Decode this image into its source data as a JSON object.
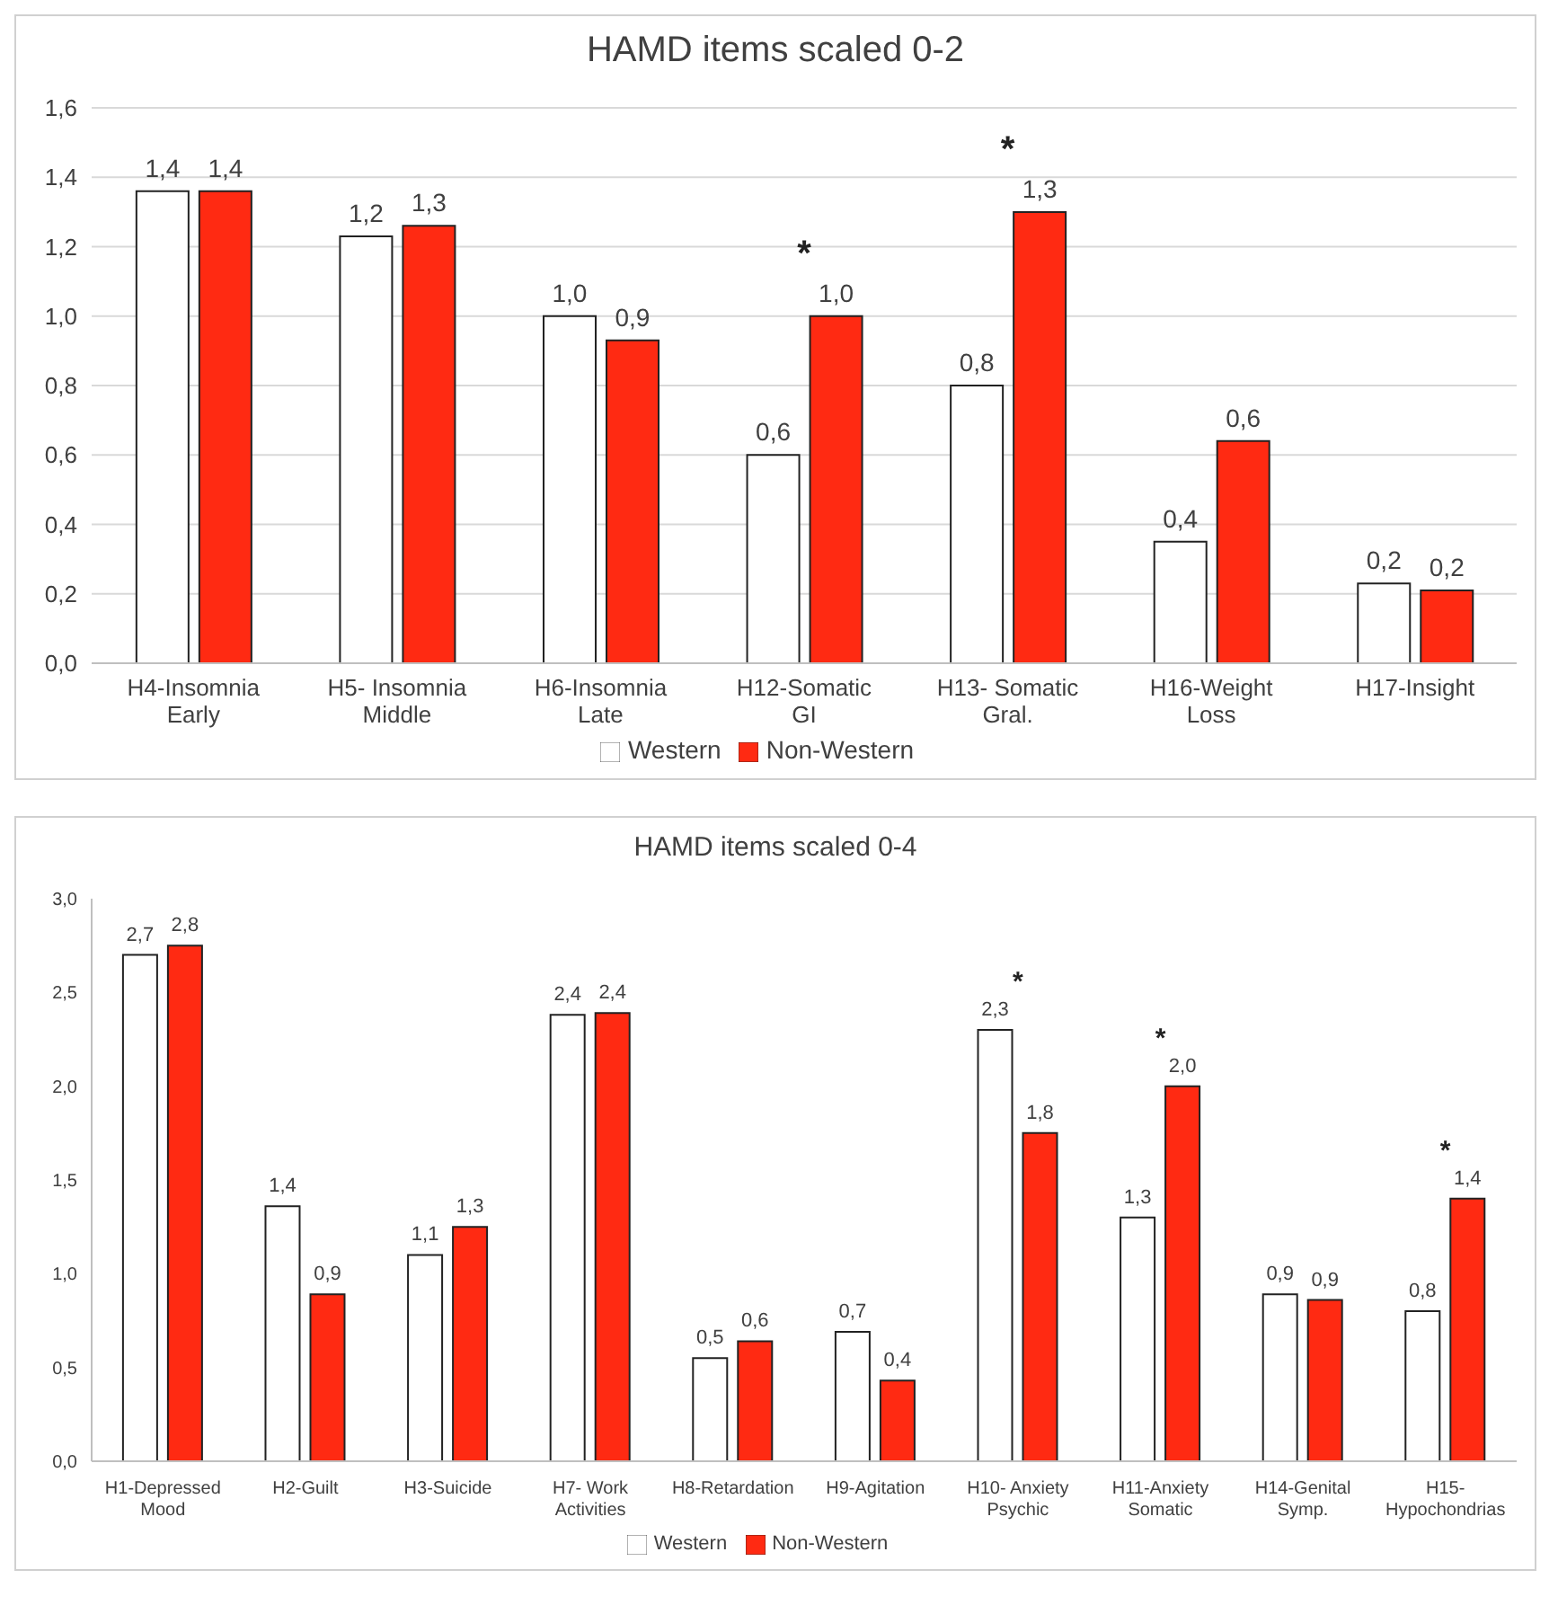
{
  "chart_data": [
    {
      "type": "bar",
      "title": "HAMD items scaled 0-2",
      "categories": [
        "H4-Insomnia Early",
        "H5- Insomnia Middle",
        "H6-Insomnia Late",
        "H12-Somatic GI",
        "H13- Somatic Gral.",
        "H16-Weight Loss",
        "H17-Insight"
      ],
      "series": [
        {
          "name": "Western",
          "color": "#ffffff",
          "values": [
            1.36,
            1.23,
            1.0,
            0.6,
            0.8,
            0.35,
            0.23
          ],
          "value_labels": [
            "1,4",
            "1,2",
            "1,0",
            "0,6",
            "0,8",
            "0,4",
            "0,2"
          ]
        },
        {
          "name": "Non-Western",
          "color": "#ff2a12",
          "values": [
            1.36,
            1.26,
            0.93,
            1.0,
            1.3,
            0.64,
            0.21
          ],
          "value_labels": [
            "1,4",
            "1,3",
            "0,9",
            "1,0",
            "1,3",
            "0,6",
            "0,2"
          ]
        }
      ],
      "ylim": [
        0,
        1.6
      ],
      "yticks": [
        {
          "value": 0,
          "label": "0,0"
        },
        {
          "value": 0.2,
          "label": "0,2"
        },
        {
          "value": 0.4,
          "label": "0,4"
        },
        {
          "value": 0.6,
          "label": "0,6"
        },
        {
          "value": 0.8,
          "label": "0,8"
        },
        {
          "value": 1,
          "label": "1,0"
        },
        {
          "value": 1.2,
          "label": "1,2"
        },
        {
          "value": 1.4,
          "label": "1,4"
        },
        {
          "value": 1.6,
          "label": "1,6"
        }
      ],
      "grid": "y",
      "legend": "bottom",
      "annotations": [
        "*",
        "*"
      ]
    },
    {
      "type": "bar",
      "title": "HAMD items scaled 0-4",
      "categories": [
        "H1-Depressed Mood",
        "H2-Guilt",
        "H3-Suicide",
        "H7- Work Activities",
        "H8-Retardation",
        "H9-Agitation",
        "H10- Anxiety Psychic",
        "H11-Anxiety Somatic",
        "H14-Genital Symp.",
        "H15- Hypochondrias"
      ],
      "series": [
        {
          "name": "Western",
          "color": "#ffffff",
          "values": [
            2.7,
            1.36,
            1.1,
            2.38,
            0.55,
            0.69,
            2.3,
            1.3,
            0.89,
            0.8
          ],
          "value_labels": [
            "2,7",
            "1,4",
            "1,1",
            "2,4",
            "0,5",
            "0,7",
            "2,3",
            "1,3",
            "0,9",
            "0,8"
          ]
        },
        {
          "name": "Non-Western",
          "color": "#ff2a12",
          "values": [
            2.75,
            0.89,
            1.25,
            2.39,
            0.64,
            0.43,
            1.75,
            2.0,
            0.86,
            1.4
          ],
          "value_labels": [
            "2,8",
            "0,9",
            "1,3",
            "2,4",
            "0,6",
            "0,4",
            "1,8",
            "2,0",
            "0,9",
            "1,4"
          ]
        }
      ],
      "ylim": [
        0,
        3
      ],
      "yticks": [
        {
          "value": 0,
          "label": "0,0"
        },
        {
          "value": 0.5,
          "label": "0,5"
        },
        {
          "value": 1,
          "label": "1,0"
        },
        {
          "value": 1.5,
          "label": "1,5"
        },
        {
          "value": 2,
          "label": "2,0"
        },
        {
          "value": 2.5,
          "label": "2,5"
        },
        {
          "value": 3,
          "label": "3,0"
        }
      ],
      "grid": false,
      "legend": "bottom",
      "annotations": [
        "*",
        "*",
        "*"
      ]
    }
  ]
}
